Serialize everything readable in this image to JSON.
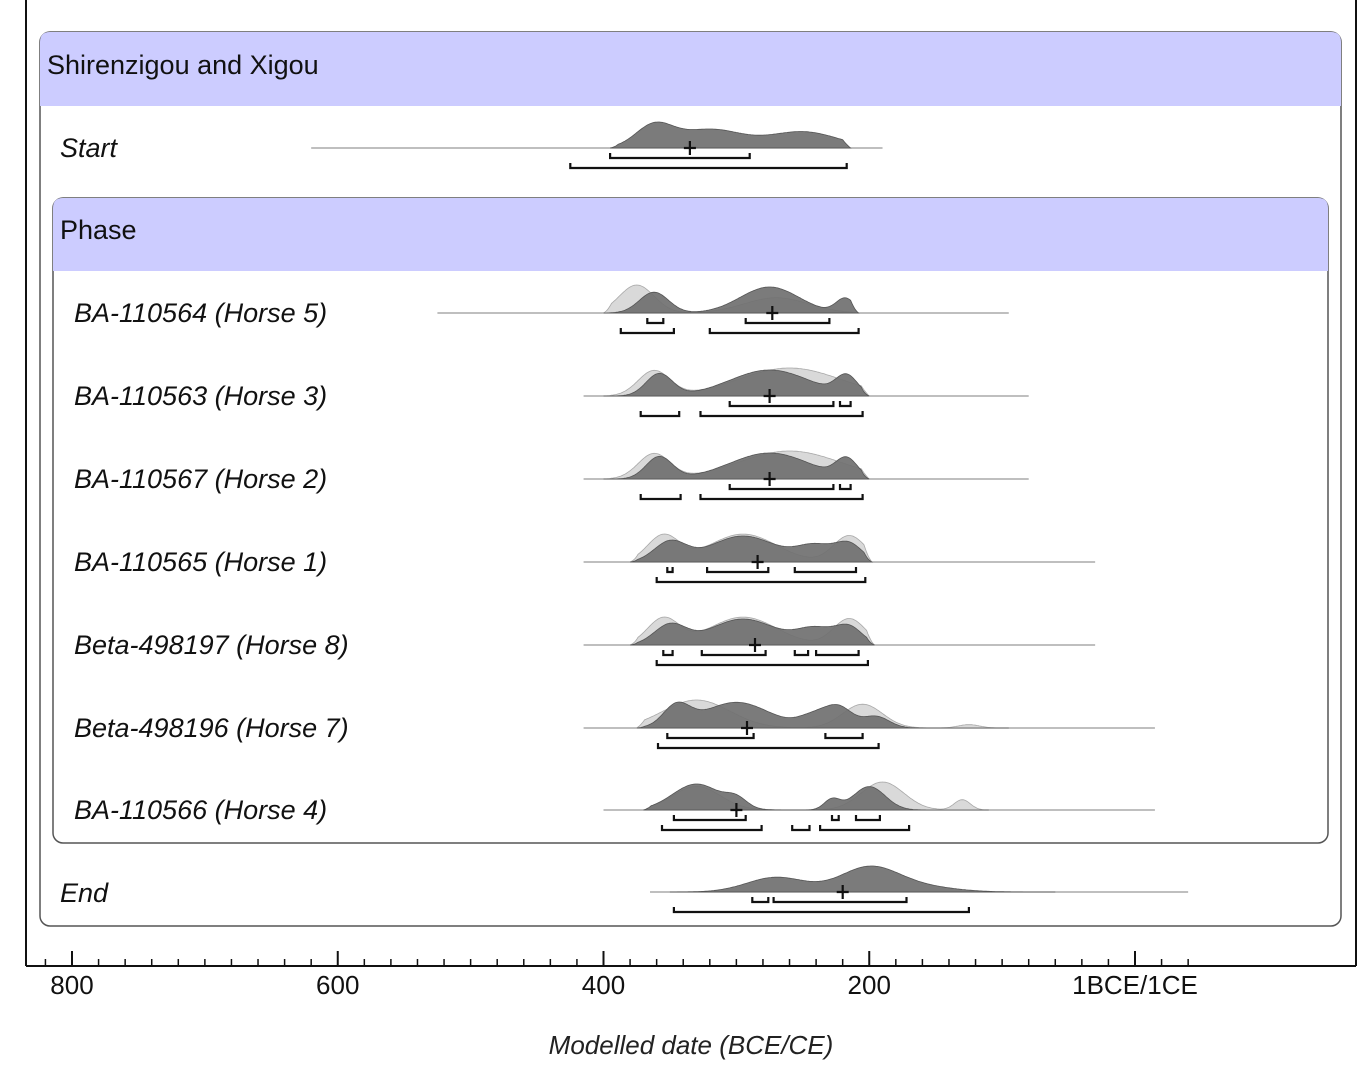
{
  "chart_data": {
    "type": "area",
    "title": "",
    "xlabel": "Modelled date (BCE/CE)",
    "x_direction": "decreasing BCE, left to right",
    "xlim": [
      810,
      -40
    ],
    "x_ticks": [
      {
        "value": 800,
        "label": "800"
      },
      {
        "value": 600,
        "label": "600"
      },
      {
        "value": 400,
        "label": "400"
      },
      {
        "value": 200,
        "label": "200"
      },
      {
        "value": 0,
        "label": "1BCE/1CE"
      }
    ],
    "minor_tick_step": 20,
    "colors": {
      "posterior": "#707070",
      "prior": "#d9d9d9",
      "header": "#ccccff",
      "outline": "#555555"
    },
    "group": {
      "title": "Shirenzigou and Xigou",
      "phase_title": "Phase",
      "start": {
        "label": "Start",
        "range": [
          620,
          190
        ],
        "mean": 335,
        "peaks": [
          {
            "c": 362,
            "w": 14,
            "h": 1.0
          },
          {
            "c": 320,
            "w": 24,
            "h": 0.85
          },
          {
            "c": 250,
            "w": 26,
            "h": 0.75
          }
        ],
        "bounds": [
          395,
          214
        ],
        "prior": null,
        "r68": [
          [
            395,
            290
          ]
        ],
        "r95": [
          [
            425,
            217
          ]
        ]
      },
      "phase_items": [
        {
          "label": "BA-110564 (Horse 5)",
          "range": [
            525,
            95
          ],
          "mean": 273,
          "bounds": [
            400,
            208
          ],
          "peaks": [
            {
              "c": 362,
              "w": 11,
              "h": 0.8
            },
            {
              "c": 275,
              "w": 22,
              "h": 1.0
            },
            {
              "c": 218,
              "w": 7,
              "h": 0.55
            }
          ],
          "prior": {
            "bounds": [
              400,
              208
            ],
            "peaks": [
              {
                "c": 375,
                "w": 13,
                "h": 1.1
              },
              {
                "c": 270,
                "w": 24,
                "h": 0.6
              }
            ]
          },
          "r68": [
            [
              367,
              355
            ],
            [
              293,
              230
            ]
          ],
          "r95": [
            [
              387,
              347
            ],
            [
              320,
              208
            ]
          ]
        },
        {
          "label": "BA-110563 (Horse 3)",
          "range": [
            415,
            80
          ],
          "mean": 275,
          "bounds": [
            400,
            200
          ],
          "peaks": [
            {
              "c": 358,
              "w": 10,
              "h": 0.85
            },
            {
              "c": 275,
              "w": 30,
              "h": 1.0
            },
            {
              "c": 217,
              "w": 8,
              "h": 0.7
            }
          ],
          "prior": {
            "bounds": [
              400,
              200
            ],
            "peaks": [
              {
                "c": 362,
                "w": 12,
                "h": 0.8
              },
              {
                "c": 260,
                "w": 38,
                "h": 0.9
              }
            ]
          },
          "r68": [
            [
              305,
              227
            ],
            [
              222,
              214
            ]
          ],
          "r95": [
            [
              372,
              343
            ],
            [
              327,
              205
            ]
          ]
        },
        {
          "label": "BA-110567 (Horse 2)",
          "range": [
            415,
            80
          ],
          "mean": 275,
          "bounds": [
            400,
            200
          ],
          "peaks": [
            {
              "c": 358,
              "w": 10,
              "h": 0.85
            },
            {
              "c": 275,
              "w": 30,
              "h": 1.0
            },
            {
              "c": 217,
              "w": 8,
              "h": 0.7
            }
          ],
          "prior": {
            "bounds": [
              400,
              200
            ],
            "peaks": [
              {
                "c": 362,
                "w": 12,
                "h": 0.8
              },
              {
                "c": 260,
                "w": 38,
                "h": 0.9
              }
            ]
          },
          "r68": [
            [
              305,
              227
            ],
            [
              222,
              214
            ]
          ],
          "r95": [
            [
              372,
              342
            ],
            [
              327,
              205
            ]
          ]
        },
        {
          "label": "BA-110565 (Horse 1)",
          "range": [
            415,
            30
          ],
          "mean": 284,
          "bounds": [
            380,
            198
          ],
          "peaks": [
            {
              "c": 350,
              "w": 12,
              "h": 0.75
            },
            {
              "c": 295,
              "w": 25,
              "h": 1.0
            },
            {
              "c": 240,
              "w": 14,
              "h": 0.6
            },
            {
              "c": 215,
              "w": 10,
              "h": 0.65
            }
          ],
          "prior": {
            "bounds": [
              380,
              198
            ],
            "peaks": [
              {
                "c": 355,
                "w": 12,
                "h": 0.85
              },
              {
                "c": 295,
                "w": 25,
                "h": 0.9
              },
              {
                "c": 215,
                "w": 12,
                "h": 0.85
              }
            ]
          },
          "r68": [
            [
              352,
              348
            ],
            [
              322,
              276
            ],
            [
              256,
              210
            ]
          ],
          "r95": [
            [
              360,
              203
            ]
          ]
        },
        {
          "label": "Beta-498197 (Horse 8)",
          "range": [
            415,
            30
          ],
          "mean": 286,
          "bounds": [
            380,
            196
          ],
          "peaks": [
            {
              "c": 350,
              "w": 12,
              "h": 0.75
            },
            {
              "c": 295,
              "w": 25,
              "h": 1.0
            },
            {
              "c": 240,
              "w": 14,
              "h": 0.6
            },
            {
              "c": 215,
              "w": 10,
              "h": 0.65
            }
          ],
          "prior": {
            "bounds": [
              380,
              196
            ],
            "peaks": [
              {
                "c": 355,
                "w": 12,
                "h": 0.85
              },
              {
                "c": 295,
                "w": 25,
                "h": 0.9
              },
              {
                "c": 215,
                "w": 12,
                "h": 0.85
              }
            ]
          },
          "r68": [
            [
              355,
              348
            ],
            [
              326,
              278
            ],
            [
              256,
              246
            ],
            [
              240,
              208
            ]
          ],
          "r95": [
            [
              360,
              201
            ]
          ]
        },
        {
          "label": "Beta-498196 (Horse 7)",
          "range": [
            415,
            -15
          ],
          "mean": 292,
          "bounds": [
            375,
            95
          ],
          "peaks": [
            {
              "c": 345,
              "w": 10,
              "h": 0.8
            },
            {
              "c": 300,
              "w": 25,
              "h": 1.0
            },
            {
              "c": 240,
              "w": 12,
              "h": 0.5
            },
            {
              "c": 222,
              "w": 10,
              "h": 0.7
            },
            {
              "c": 195,
              "w": 10,
              "h": 0.45
            }
          ],
          "prior": {
            "bounds": [
              375,
              95
            ],
            "peaks": [
              {
                "c": 330,
                "w": 25,
                "h": 1.0
              },
              {
                "c": 205,
                "w": 15,
                "h": 0.85
              },
              {
                "c": 125,
                "w": 8,
                "h": 0.12
              }
            ]
          },
          "r68": [
            [
              352,
              287
            ],
            [
              233,
              205
            ]
          ],
          "r95": [
            [
              359,
              193
            ]
          ]
        },
        {
          "label": "BA-110566 (Horse 4)",
          "range": [
            400,
            -15
          ],
          "mean": 300,
          "bounds": [
            370,
            110
          ],
          "peaks": [
            {
              "c": 330,
              "w": 18,
              "h": 1.0
            },
            {
              "c": 300,
              "w": 8,
              "h": 0.35
            },
            {
              "c": 228,
              "w": 6,
              "h": 0.4
            },
            {
              "c": 200,
              "w": 12,
              "h": 0.9
            }
          ],
          "prior": {
            "bounds": [
              370,
              110
            ],
            "peaks": [
              {
                "c": 330,
                "w": 18,
                "h": 0.8
              },
              {
                "c": 190,
                "w": 16,
                "h": 0.95
              },
              {
                "c": 130,
                "w": 6,
                "h": 0.35
              }
            ]
          },
          "r68": [
            [
              347,
              293
            ],
            [
              228,
              223
            ],
            [
              210,
              192
            ]
          ],
          "r95": [
            [
              356,
              281
            ],
            [
              258,
              245
            ],
            [
              237,
              170
            ]
          ]
        }
      ],
      "end": {
        "label": "End",
        "range": [
          365,
          -40
        ],
        "mean": 220,
        "peaks": [
          {
            "c": 270,
            "w": 22,
            "h": 0.6
          },
          {
            "c": 200,
            "w": 22,
            "h": 1.0
          },
          {
            "c": 160,
            "w": 25,
            "h": 0.2
          }
        ],
        "bounds": [
          350,
          60
        ],
        "prior": null,
        "r68": [
          [
            288,
            276
          ],
          [
            272,
            172
          ]
        ],
        "r95": [
          [
            347,
            125
          ]
        ]
      }
    }
  }
}
